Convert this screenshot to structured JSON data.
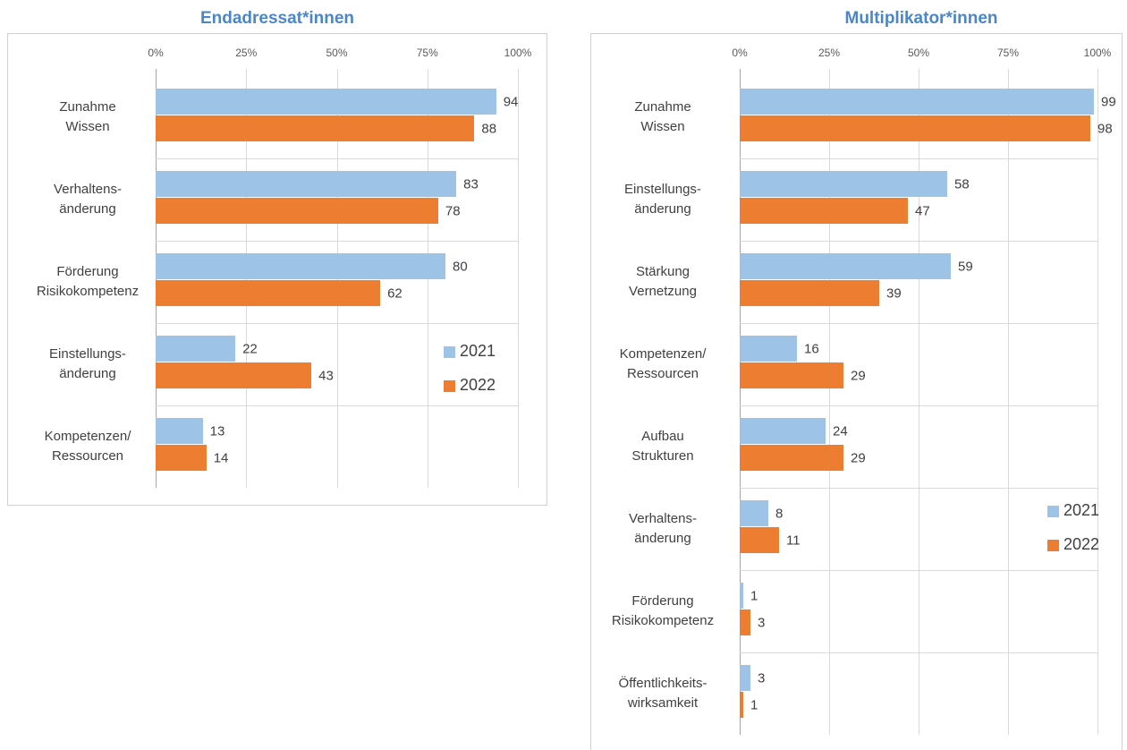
{
  "chart_data": [
    {
      "type": "barh",
      "title": "Endadressat*innen",
      "categories": [
        "Zunahme\nWissen",
        "Verhaltens-\nänderung",
        "Förderung\nRisikokompetenz",
        "Einstellungs-\nänderung",
        "Kompetenzen/\nRessourcen"
      ],
      "series": [
        {
          "name": "2021",
          "color": "#9dc3e6",
          "values": [
            94,
            83,
            80,
            22,
            13
          ]
        },
        {
          "name": "2022",
          "color": "#ed7d31",
          "values": [
            88,
            78,
            62,
            43,
            14
          ]
        }
      ],
      "xlim": [
        0,
        100
      ],
      "xticks": [
        {
          "value": 0,
          "label": "0%"
        },
        {
          "value": 25,
          "label": "25%"
        },
        {
          "value": 50,
          "label": "50%"
        },
        {
          "value": 75,
          "label": "75%"
        },
        {
          "value": 100,
          "label": "100%"
        }
      ],
      "grid": true,
      "legend": "right"
    },
    {
      "type": "barh",
      "title": "Multiplikator*innen",
      "categories": [
        "Zunahme\nWissen",
        "Einstellungs-\nänderung",
        "Stärkung\nVernetzung",
        "Kompetenzen/\nRessourcen",
        "Aufbau\nStrukturen",
        "Verhaltens-\nänderung",
        "Förderung\nRisikokompetenz",
        "Öffentlichkeits-\nwirksamkeit"
      ],
      "series": [
        {
          "name": "2021",
          "color": "#9dc3e6",
          "values": [
            99,
            58,
            59,
            16,
            24,
            8,
            1,
            3
          ]
        },
        {
          "name": "2022",
          "color": "#ed7d31",
          "values": [
            98,
            47,
            39,
            29,
            29,
            11,
            3,
            1
          ]
        }
      ],
      "xlim": [
        0,
        100
      ],
      "xticks": [
        {
          "value": 0,
          "label": "0%"
        },
        {
          "value": 25,
          "label": "25%"
        },
        {
          "value": 50,
          "label": "50%"
        },
        {
          "value": 75,
          "label": "75%"
        },
        {
          "value": 100,
          "label": "100%"
        }
      ],
      "grid": true,
      "legend": "right"
    }
  ]
}
